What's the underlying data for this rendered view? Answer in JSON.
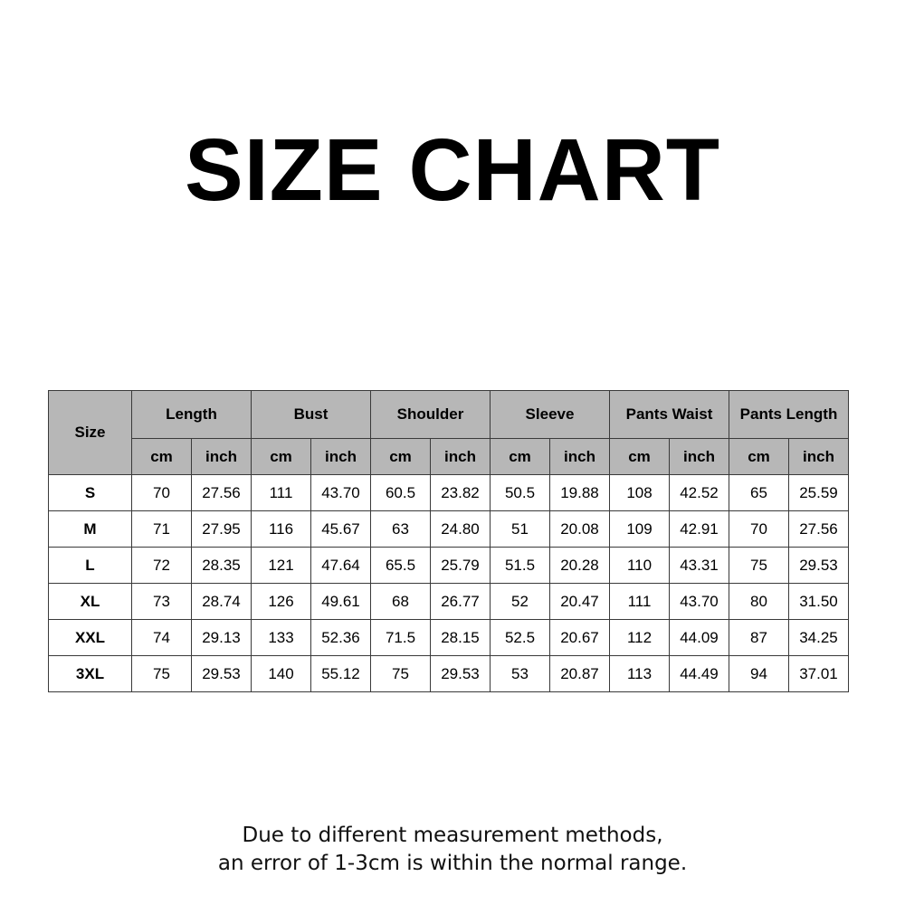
{
  "title": "SIZE CHART",
  "table": {
    "size_header": "Size",
    "groups": [
      "Length",
      "Bust",
      "Shoulder",
      "Sleeve",
      "Pants Waist",
      "Pants Length"
    ],
    "units": [
      "cm",
      "inch"
    ],
    "rows": [
      {
        "size": "S",
        "values": [
          "70",
          "27.56",
          "111",
          "43.70",
          "60.5",
          "23.82",
          "50.5",
          "19.88",
          "108",
          "42.52",
          "65",
          "25.59"
        ]
      },
      {
        "size": "M",
        "values": [
          "71",
          "27.95",
          "116",
          "45.67",
          "63",
          "24.80",
          "51",
          "20.08",
          "109",
          "42.91",
          "70",
          "27.56"
        ]
      },
      {
        "size": "L",
        "values": [
          "72",
          "28.35",
          "121",
          "47.64",
          "65.5",
          "25.79",
          "51.5",
          "20.28",
          "110",
          "43.31",
          "75",
          "29.53"
        ]
      },
      {
        "size": "XL",
        "values": [
          "73",
          "28.74",
          "126",
          "49.61",
          "68",
          "26.77",
          "52",
          "20.47",
          "111",
          "43.70",
          "80",
          "31.50"
        ]
      },
      {
        "size": "XXL",
        "values": [
          "74",
          "29.13",
          "133",
          "52.36",
          "71.5",
          "28.15",
          "52.5",
          "20.67",
          "112",
          "44.09",
          "87",
          "34.25"
        ]
      },
      {
        "size": "3XL",
        "values": [
          "75",
          "29.53",
          "140",
          "55.12",
          "75",
          "29.53",
          "53",
          "20.87",
          "113",
          "44.49",
          "94",
          "37.01"
        ]
      }
    ]
  },
  "note": {
    "line1": "Due to different measurement methods,",
    "line2": "an error of 1-3cm is within the normal range."
  },
  "colors": {
    "header_bg": "#b7b7b7",
    "border": "#3a3a3a"
  }
}
